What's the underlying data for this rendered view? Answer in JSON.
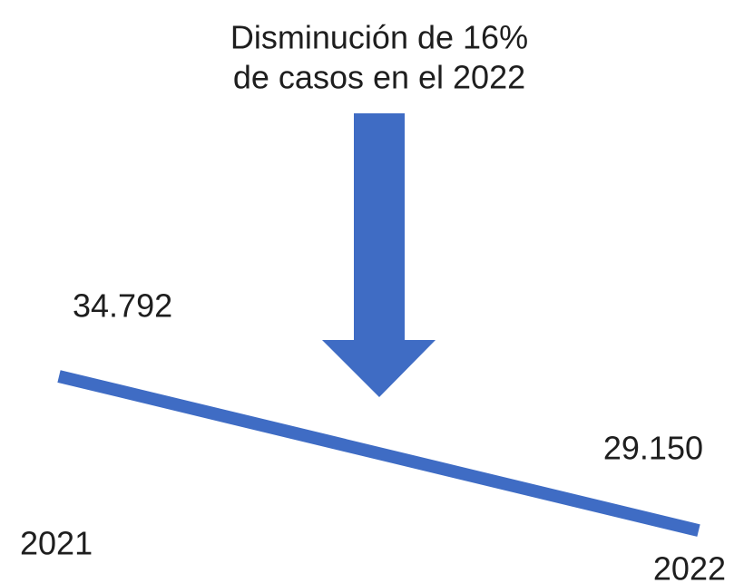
{
  "chart_data": {
    "type": "line",
    "annotation": [
      "Disminución de 16%",
      "de casos en el 2022"
    ],
    "categories": [
      "2021",
      "2022"
    ],
    "values": [
      34792,
      29150
    ],
    "value_labels": [
      "34.792",
      "29.150"
    ],
    "color": "#3f6cc4",
    "ylim": [
      20000,
      40000
    ]
  }
}
